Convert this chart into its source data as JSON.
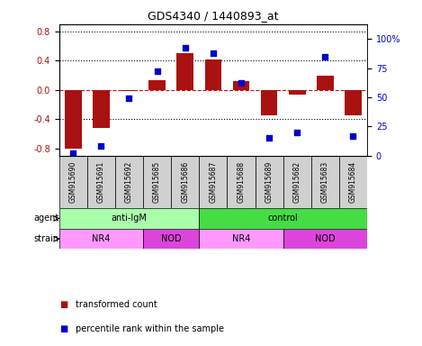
{
  "title": "GDS4340 / 1440893_at",
  "samples": [
    "GSM915690",
    "GSM915691",
    "GSM915692",
    "GSM915685",
    "GSM915686",
    "GSM915687",
    "GSM915688",
    "GSM915689",
    "GSM915682",
    "GSM915683",
    "GSM915684"
  ],
  "transformed_count": [
    -0.8,
    -0.52,
    -0.02,
    0.13,
    0.5,
    0.42,
    0.12,
    -0.35,
    -0.07,
    0.2,
    -0.35
  ],
  "percentile_rank": [
    2,
    8,
    49,
    72,
    92,
    88,
    62,
    15,
    20,
    85,
    17
  ],
  "agent_groups": [
    {
      "label": "anti-IgM",
      "start": 0,
      "end": 5,
      "color": "#aaffaa"
    },
    {
      "label": "control",
      "start": 5,
      "end": 11,
      "color": "#44dd44"
    }
  ],
  "strain_groups": [
    {
      "label": "NR4",
      "start": 0,
      "end": 3,
      "color": "#ff99ff"
    },
    {
      "label": "NOD",
      "start": 3,
      "end": 5,
      "color": "#dd44dd"
    },
    {
      "label": "NR4",
      "start": 5,
      "end": 8,
      "color": "#ff99ff"
    },
    {
      "label": "NOD",
      "start": 8,
      "end": 11,
      "color": "#dd44dd"
    }
  ],
  "ylim_left": [
    -0.9,
    0.9
  ],
  "yticks_left": [
    -0.8,
    -0.4,
    0.0,
    0.4,
    0.8
  ],
  "ylim_right": [
    0,
    112.5
  ],
  "yticks_right": [
    0,
    25,
    50,
    75,
    100
  ],
  "bar_color": "#AA1111",
  "dot_color": "#0000CC",
  "dashed_line_color": "#CC1111",
  "dotted_line_color": "#000000",
  "background_color": "#ffffff",
  "plot_bg_color": "#ffffff",
  "tick_box_color": "#d0d0d0",
  "legend_items": [
    {
      "label": "transformed count",
      "color": "#AA1111"
    },
    {
      "label": "percentile rank within the sample",
      "color": "#0000CC"
    }
  ]
}
